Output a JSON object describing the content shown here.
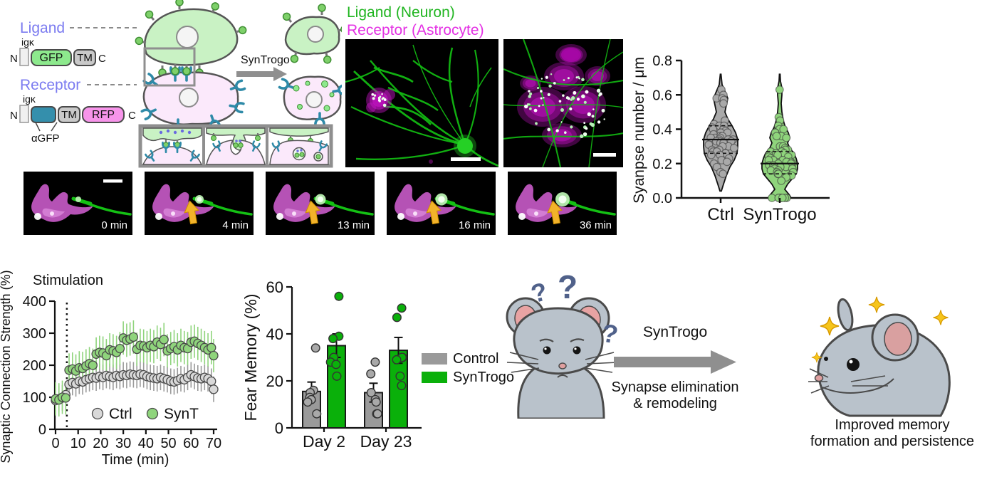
{
  "schematic": {
    "ligand": "Ligand",
    "receptor": "Receptor",
    "igk": "igκ",
    "n": "N",
    "c": "C",
    "gfp": "GFP",
    "tm": "TM",
    "rfp": "RFP",
    "agfp": "αGFP",
    "syntrogo": "SynTrogo"
  },
  "microscopy": {
    "label_ligand": "Ligand (Neuron)",
    "label_receptor": "Receptor (Astrocyte)"
  },
  "timelapse": {
    "frames": [
      {
        "label": "0 min",
        "arrow": false
      },
      {
        "label": "4 min",
        "arrow": true
      },
      {
        "label": "13 min",
        "arrow": true
      },
      {
        "label": "16 min",
        "arrow": true
      },
      {
        "label": "36 min",
        "arrow": true
      }
    ]
  },
  "mice": {
    "qmark": "?",
    "arrow_label": "SynTrogo",
    "process_line1": "Synapse elimination",
    "process_line2": "& remodeling",
    "caption_line1": "Improved memory",
    "caption_line2": "formation and persistence"
  },
  "colors": {
    "accent_green": "#0ab00a",
    "light_green": "#8fd47c",
    "gray": "#9a9a9a",
    "magenta_label": "#e431e4",
    "green_label": "#21b521",
    "teal_receptor": "#2e8aa8",
    "blue_construct_label": "#7b7bf0",
    "yellow_arrow": "#f2b32a",
    "question_mark_blue": "#50618a"
  },
  "chart_data": [
    {
      "id": "synapse-number-violin",
      "type": "violin",
      "ylabel": "Syanpse number / μm",
      "ylim": [
        0,
        0.8
      ],
      "yticks": [
        0,
        0.2,
        0.4,
        0.6,
        0.8
      ],
      "categories": [
        "Ctrl",
        "SynTrogo"
      ],
      "groups": [
        {
          "name": "Ctrl",
          "color": "#a9a9a9",
          "dot_color": "#a9a9a9",
          "median": 0.34,
          "q1": 0.26,
          "q3": 0.42,
          "profile": [
            [
              0.04,
              1
            ],
            [
              0.08,
              4
            ],
            [
              0.13,
              8
            ],
            [
              0.18,
              13
            ],
            [
              0.22,
              19
            ],
            [
              0.26,
              23
            ],
            [
              0.3,
              24
            ],
            [
              0.34,
              24
            ],
            [
              0.38,
              21
            ],
            [
              0.42,
              16
            ],
            [
              0.46,
              10
            ],
            [
              0.5,
              6
            ],
            [
              0.54,
              8
            ],
            [
              0.58,
              10
            ],
            [
              0.62,
              6
            ],
            [
              0.66,
              2
            ],
            [
              0.72,
              0.5
            ]
          ],
          "points": [
            0.63,
            0.6,
            0.58,
            0.58,
            0.57,
            0.55,
            0.45,
            0.43,
            0.42,
            0.42,
            0.41,
            0.4,
            0.4,
            0.39,
            0.38,
            0.38,
            0.37,
            0.36,
            0.36,
            0.35,
            0.35,
            0.35,
            0.34,
            0.34,
            0.34,
            0.33,
            0.33,
            0.33,
            0.32,
            0.32,
            0.31,
            0.3,
            0.3,
            0.29,
            0.28,
            0.28,
            0.27,
            0.27,
            0.26,
            0.25,
            0.25,
            0.23,
            0.22,
            0.21,
            0.2,
            0.18,
            0.15,
            0.14
          ]
        },
        {
          "name": "SynTrogo",
          "color": "#8fd47c",
          "dot_color": "#8fd47c",
          "median": 0.2,
          "q1": 0.14,
          "q3": 0.27,
          "profile": [
            [
              0.0,
              16
            ],
            [
              0.02,
              13
            ],
            [
              0.05,
              7
            ],
            [
              0.08,
              11
            ],
            [
              0.11,
              17
            ],
            [
              0.14,
              23
            ],
            [
              0.17,
              25
            ],
            [
              0.2,
              25
            ],
            [
              0.23,
              23
            ],
            [
              0.26,
              20
            ],
            [
              0.29,
              14
            ],
            [
              0.32,
              11
            ],
            [
              0.35,
              14
            ],
            [
              0.38,
              12
            ],
            [
              0.41,
              8
            ],
            [
              0.45,
              5
            ],
            [
              0.5,
              3
            ],
            [
              0.55,
              2
            ],
            [
              0.6,
              3
            ],
            [
              0.64,
              3
            ],
            [
              0.68,
              1
            ],
            [
              0.72,
              0.5
            ]
          ],
          "points": [
            0.63,
            0.47,
            0.45,
            0.42,
            0.4,
            0.4,
            0.38,
            0.38,
            0.36,
            0.36,
            0.35,
            0.3,
            0.3,
            0.29,
            0.28,
            0.28,
            0.27,
            0.27,
            0.26,
            0.26,
            0.25,
            0.25,
            0.25,
            0.24,
            0.24,
            0.23,
            0.22,
            0.22,
            0.22,
            0.21,
            0.21,
            0.2,
            0.2,
            0.2,
            0.19,
            0.19,
            0.18,
            0.18,
            0.18,
            0.17,
            0.17,
            0.16,
            0.16,
            0.15,
            0.15,
            0.14,
            0.14,
            0.13,
            0.13,
            0.12,
            0.1,
            0,
            0,
            0,
            0,
            0,
            0,
            0,
            0
          ]
        }
      ]
    },
    {
      "id": "synaptic-connection-strength",
      "type": "scatter-line",
      "ylabel": "Synaptic Connection Strength (%)",
      "xlabel": "Time  (min)",
      "annotation": "Stimulation",
      "stim_time": 5,
      "ylim": [
        0,
        400
      ],
      "xlim": [
        0,
        70
      ],
      "yticks": [
        0,
        100,
        200,
        300,
        400
      ],
      "xticks": [
        0,
        10,
        20,
        30,
        40,
        50,
        60,
        70
      ],
      "legend": [
        "Ctrl",
        "SynT"
      ],
      "series": [
        {
          "name": "Ctrl",
          "color": "#d9d9d9",
          "err_color": "#9a9a9a",
          "err": 40,
          "x": [
            0,
            1.5,
            3,
            4.5,
            6,
            7.5,
            9,
            10.5,
            12,
            13.5,
            15,
            16.5,
            18,
            19.5,
            21,
            22.5,
            24,
            25.5,
            27,
            28.5,
            30,
            31.5,
            33,
            34.5,
            36,
            37.5,
            39,
            40.5,
            42,
            43.5,
            45,
            46.5,
            48,
            49.5,
            51,
            52.5,
            54,
            55.5,
            57,
            58.5,
            60,
            61.5,
            63,
            64.5,
            66,
            67.5,
            69,
            70
          ],
          "y": [
            90,
            95,
            98,
            108,
            140,
            146,
            142,
            150,
            148,
            155,
            158,
            162,
            160,
            165,
            162,
            168,
            165,
            162,
            168,
            165,
            170,
            168,
            172,
            170,
            168,
            172,
            170,
            165,
            162,
            160,
            158,
            162,
            158,
            155,
            150,
            148,
            152,
            158,
            155,
            162,
            170,
            165,
            160,
            158,
            162,
            158,
            150,
            125
          ]
        },
        {
          "name": "SynT",
          "color": "#8fd47c",
          "err_color": "#8fd47c",
          "err": 52,
          "x": [
            0,
            1.5,
            3,
            4.5,
            6,
            7.5,
            9,
            10.5,
            12,
            13.5,
            15,
            16.5,
            18,
            19.5,
            21,
            22.5,
            24,
            25.5,
            27,
            28.5,
            30,
            31.5,
            33,
            34.5,
            36,
            37.5,
            39,
            40.5,
            42,
            43.5,
            45,
            46.5,
            48,
            49.5,
            51,
            52.5,
            54,
            55.5,
            57,
            58.5,
            60,
            61.5,
            63,
            64.5,
            66,
            67.5,
            69,
            70
          ],
          "y": [
            95,
            92,
            100,
            98,
            185,
            188,
            182,
            192,
            190,
            198,
            205,
            200,
            235,
            240,
            238,
            230,
            248,
            245,
            240,
            252,
            285,
            278,
            282,
            288,
            250,
            262,
            260,
            255,
            262,
            258,
            272,
            265,
            280,
            245,
            252,
            258,
            248,
            262,
            255,
            252,
            272,
            275,
            268,
            262,
            255,
            248,
            255,
            230
          ]
        }
      ]
    },
    {
      "id": "fear-memory-bar",
      "type": "bar",
      "ylabel": "Fear Memory (%)",
      "ylim": [
        0,
        60
      ],
      "yticks": [
        0,
        20,
        40,
        60
      ],
      "categories": [
        "Day 2",
        "Day 23"
      ],
      "legend": [
        {
          "label": "Control",
          "color": "#9a9a9a"
        },
        {
          "label": "SynTrogo",
          "color": "#0ab00a"
        }
      ],
      "series": [
        {
          "name": "Control",
          "color": "#9a9a9a",
          "values": [
            15.5,
            15
          ],
          "errors": [
            4,
            4
          ],
          "dots": [
            [
              34,
              16,
              15,
              13,
              12,
              11,
              6
            ],
            [
              28,
              23,
              15,
              12,
              11,
              6,
              6
            ]
          ]
        },
        {
          "name": "SynTrogo",
          "color": "#0ab00a",
          "values": [
            35,
            33
          ],
          "errors": [
            5,
            5.5
          ],
          "dots": [
            [
              56,
              39,
              38,
              30,
              28,
              27,
              22
            ],
            [
              51,
              47,
              30,
              30,
              29,
              22,
              18
            ]
          ]
        }
      ]
    }
  ]
}
